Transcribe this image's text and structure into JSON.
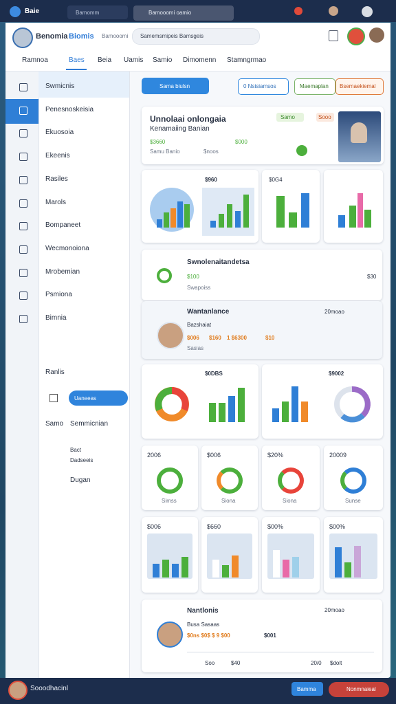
{
  "browser": {
    "app": "Baie",
    "tabs": [
      "Bamomm",
      "Bamooomi oamio"
    ]
  },
  "header": {
    "title": "Benomia",
    "title_accent": "Biomis",
    "label": "Bamooomi",
    "search": "Samemsmipeis Bamsgeis"
  },
  "nav": [
    "Ramnoa",
    "Baes",
    "Beia",
    "Uamis",
    "Samio",
    "Dimomenn",
    "Stamngrmao"
  ],
  "sidebar": {
    "items": [
      "Swmicnis",
      "Penesnoskeisia",
      "Ekuosoia",
      "Ekeenis",
      "Rasiles",
      "Marols",
      "Bompaneet",
      "Wecmonoiona",
      "Mrobemian",
      "Psmiona",
      "Bimnia"
    ],
    "section": "Ranlis",
    "button": "Uaneeas",
    "sub_label": "Samo",
    "sub_item": "Semmicnian",
    "extra": [
      "Bact",
      "Dadseeis",
      "Dugan"
    ]
  },
  "toolbar": [
    "Sama biulsn",
    "0 Nsisiamsos",
    "Maemaplan",
    "Bsemaekiemal"
  ],
  "profile": {
    "name": "Unnolaai onlongaia",
    "role": "Kenamaiing Banian",
    "stats": "Samu Banio",
    "amounts": [
      "$3660",
      "$noos",
      "$000"
    ],
    "tags": [
      "Samo",
      "Sooo"
    ]
  },
  "row1": [
    "$960",
    "$0G4"
  ],
  "summary": {
    "title": "Swnolenaitandetsa",
    "amount": "$100",
    "note": "Swapoiss",
    "score": "$30"
  },
  "person": {
    "title": "Wantanlance",
    "date": "20moao",
    "role": "Bazshaiat",
    "amounts": [
      "$006",
      "$160",
      "1 $6300",
      "$10"
    ],
    "note": "Sasias"
  },
  "row4": [
    "$0DBS",
    "$9002"
  ],
  "row5": {
    "values": [
      "2006",
      "$006",
      "$20%",
      "20009"
    ],
    "labels": [
      "Simss",
      "Siona",
      "Siona",
      "Sunse"
    ]
  },
  "row6": [
    "$006",
    "$660",
    "$00%",
    "$00%"
  ],
  "team": {
    "title": "Nantlonis",
    "date": "20moao",
    "role": "Busa Sasaas",
    "amounts": "$0ns $0$ $ 9 $00",
    "total": "$001",
    "footer": [
      "Soo",
      "$40",
      "20/0",
      "$dolt"
    ]
  },
  "bottom": {
    "user": "Sooodhacinl",
    "buttons": [
      "Bamma",
      "Nonmnaieal"
    ]
  }
}
